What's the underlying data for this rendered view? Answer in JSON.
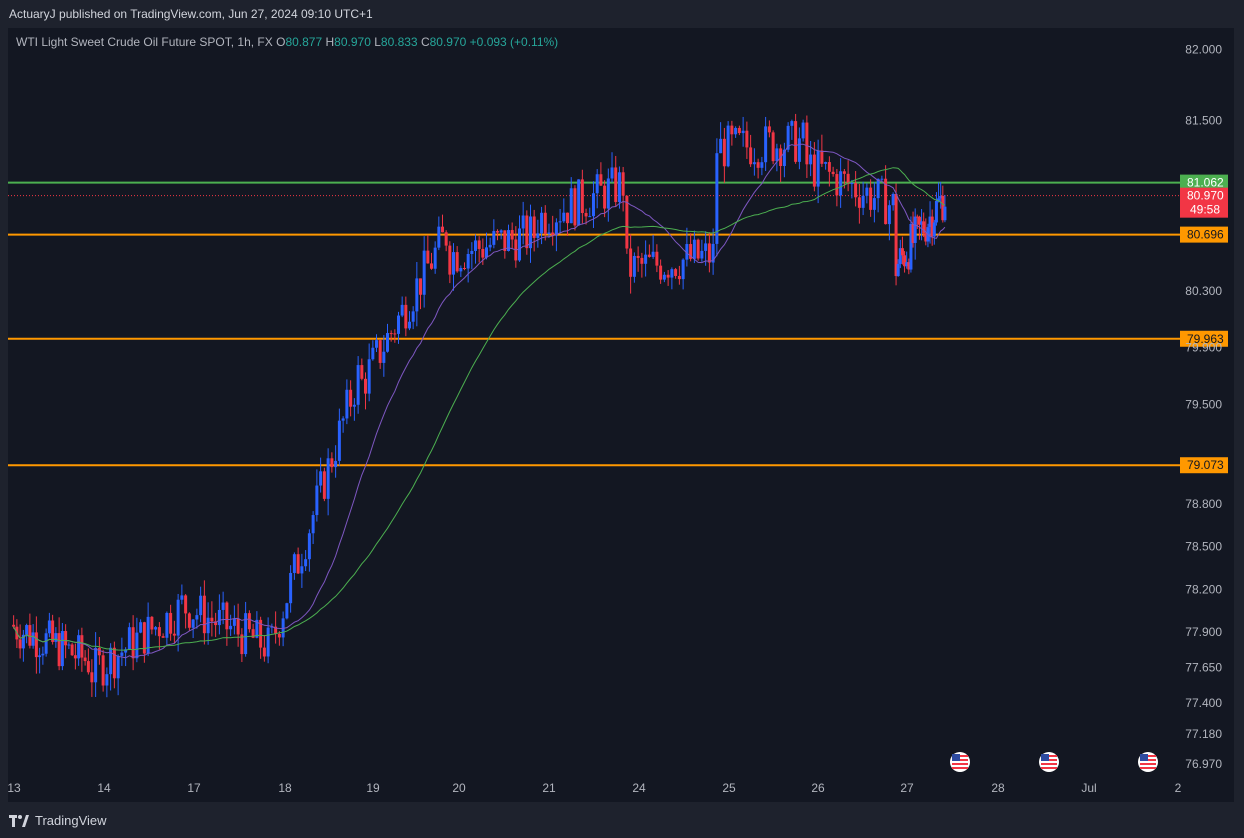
{
  "header": {
    "published": "ActuaryJ published on TradingView.com, Jun 27, 2024 09:10 UTC+1"
  },
  "legend": {
    "symbol": "WTI Light Sweet Crude Oil Future SPOT, 1h, FX",
    "o_label": "O",
    "o_value": "80.877",
    "h_label": "H",
    "h_value": "80.970",
    "l_label": "L",
    "l_value": "80.833",
    "c_label": "C",
    "c_value": "80.970",
    "change": "+0.093 (+0.11%)"
  },
  "footer": {
    "brand": "TradingView"
  },
  "colors": {
    "up": "#2962ff",
    "down": "#f23645",
    "ma_fast": "#7e57c2",
    "ma_slow": "#4caf50",
    "support": "#ff9800",
    "resistance": "#4caf50",
    "price": "#f23645"
  },
  "chart_data": {
    "type": "candlestick",
    "title": "WTI Light Sweet Crude Oil Future SPOT, 1h, FX",
    "ylim": [
      76.9,
      82.15
    ],
    "y_ticks": [
      "82.000",
      "81.500",
      "80.300",
      "79.900",
      "79.500",
      "78.800",
      "78.500",
      "78.200",
      "77.900",
      "77.650",
      "77.400",
      "77.180",
      "76.970"
    ],
    "x_ticks": [
      "13",
      "14",
      "17",
      "18",
      "19",
      "20",
      "21",
      "24",
      "25",
      "26",
      "27",
      "28",
      "Jul",
      "2"
    ],
    "horizontal_levels": [
      {
        "value": 81.062,
        "label": "81.062",
        "kind": "resistance"
      },
      {
        "value": 80.696,
        "label": "80.696",
        "kind": "support"
      },
      {
        "value": 79.963,
        "label": "79.963",
        "kind": "support"
      },
      {
        "value": 79.073,
        "label": "79.073",
        "kind": "support"
      }
    ],
    "last_price": {
      "value": 80.97,
      "label": "80.970",
      "countdown": "49:58"
    },
    "candles_summary": [
      {
        "day": "13",
        "open": 77.95,
        "close": 77.7
      },
      {
        "day": "14",
        "open": 77.6,
        "close": 78.05
      },
      {
        "day": "17",
        "open": 78.1,
        "close": 77.8
      },
      {
        "day": "18",
        "open": 77.75,
        "close": 79.7
      },
      {
        "day": "19",
        "open": 79.6,
        "close": 80.7
      },
      {
        "day": "20",
        "open": 80.55,
        "close": 80.7
      },
      {
        "day": "21",
        "open": 80.8,
        "close": 81.05
      },
      {
        "day": "24",
        "open": 80.45,
        "close": 80.55
      },
      {
        "day": "25",
        "open": 81.3,
        "close": 81.35
      },
      {
        "day": "26",
        "open": 81.2,
        "close": 80.9
      },
      {
        "day": "27",
        "open": 80.45,
        "close": 80.97
      }
    ]
  }
}
